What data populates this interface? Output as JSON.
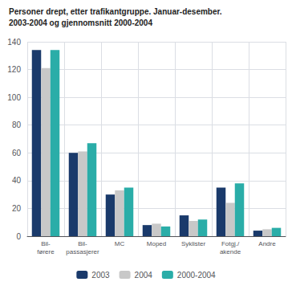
{
  "chart_data": {
    "type": "bar",
    "title": "Personer drept, etter trafikantgruppe. Januar-desember.",
    "subtitle": "2003-2004 og gjennomsnitt 2000-2004",
    "categories": [
      "Bil-\nførere",
      "Bil-\npassasjerer",
      "MC",
      "Moped",
      "Syklister",
      "Fotgj./\nakende",
      "Andre"
    ],
    "series": [
      {
        "name": "2003",
        "color": "#1a3a6b",
        "values": [
          134,
          60,
          30,
          8,
          15,
          35,
          4
        ]
      },
      {
        "name": "2004",
        "color": "#c8c8c8",
        "values": [
          121,
          61,
          33,
          9,
          11,
          24,
          5
        ]
      },
      {
        "name": "2000-2004",
        "color": "#2aada8",
        "values": [
          134,
          67,
          35,
          7,
          12,
          38,
          6
        ]
      }
    ],
    "ylim": [
      0,
      140
    ],
    "yticks": [
      0,
      20,
      40,
      60,
      80,
      100,
      120,
      140
    ],
    "grid": true,
    "legend": "bottom"
  }
}
